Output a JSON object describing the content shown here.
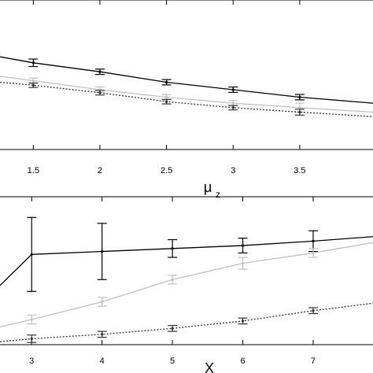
{
  "chart_data": [
    {
      "type": "line",
      "xlabel": "μ",
      "xlabel_subscript": "z",
      "xticks": [
        1.5,
        2,
        2.5,
        3,
        3.5
      ],
      "xlim": [
        1.25,
        4.05
      ],
      "ylim": [
        0,
        1
      ],
      "grid": false,
      "series": [
        {
          "color": "#000000",
          "dash": "solid",
          "markers": true,
          "x": [
            1.25,
            1.5,
            2,
            2.5,
            3,
            3.5,
            4.05
          ],
          "y": [
            0.62,
            0.58,
            0.52,
            0.45,
            0.4,
            0.35,
            0.31
          ],
          "err": [
            null,
            0.025,
            0.018,
            0.018,
            0.018,
            0.018,
            null
          ]
        },
        {
          "color": "#c0c0c0",
          "dash": "solid",
          "markers": true,
          "x": [
            1.25,
            1.5,
            2,
            2.5,
            3,
            3.5,
            4.05
          ],
          "y": [
            0.49,
            0.46,
            0.4,
            0.35,
            0.31,
            0.28,
            0.25
          ],
          "err": [
            null,
            0.018,
            0.018,
            0.018,
            0.018,
            0.03,
            null
          ]
        },
        {
          "color": "#333333",
          "dash": "dotted",
          "markers": true,
          "x": [
            1.25,
            1.5,
            2,
            2.5,
            3,
            3.5,
            4.05
          ],
          "y": [
            0.45,
            0.43,
            0.38,
            0.32,
            0.28,
            0.25,
            0.22
          ],
          "err": [
            null,
            0.015,
            0.015,
            0.015,
            0.015,
            0.02,
            null
          ]
        }
      ]
    },
    {
      "type": "line",
      "xlabel": "X",
      "xticks": [
        3,
        4,
        5,
        6,
        7
      ],
      "xlim": [
        2.55,
        7.85
      ],
      "ylim": [
        0,
        1
      ],
      "grid": false,
      "series": [
        {
          "color": "#000000",
          "dash": "solid",
          "markers": true,
          "x": [
            2.55,
            3,
            4,
            5,
            6,
            7,
            7.85
          ],
          "y": [
            0.4,
            0.61,
            0.63,
            0.65,
            0.67,
            0.7,
            0.73
          ],
          "err": [
            null,
            0.25,
            0.19,
            0.06,
            0.05,
            0.07,
            null
          ]
        },
        {
          "color": "#c0c0c0",
          "dash": "solid",
          "markers": true,
          "x": [
            2.55,
            3,
            4,
            5,
            6,
            7,
            7.85
          ],
          "y": [
            0.12,
            0.17,
            0.29,
            0.44,
            0.55,
            0.62,
            0.69
          ],
          "err": [
            null,
            0.03,
            0.03,
            0.03,
            0.04,
            0.03,
            null
          ]
        },
        {
          "color": "#333333",
          "dash": "dotted",
          "markers": true,
          "x": [
            2.55,
            3,
            4,
            5,
            6,
            7,
            7.85
          ],
          "y": [
            0.02,
            0.04,
            0.07,
            0.11,
            0.16,
            0.23,
            0.28
          ],
          "err": [
            null,
            0.025,
            0.02,
            0.02,
            0.02,
            0.02,
            null
          ]
        }
      ]
    }
  ]
}
